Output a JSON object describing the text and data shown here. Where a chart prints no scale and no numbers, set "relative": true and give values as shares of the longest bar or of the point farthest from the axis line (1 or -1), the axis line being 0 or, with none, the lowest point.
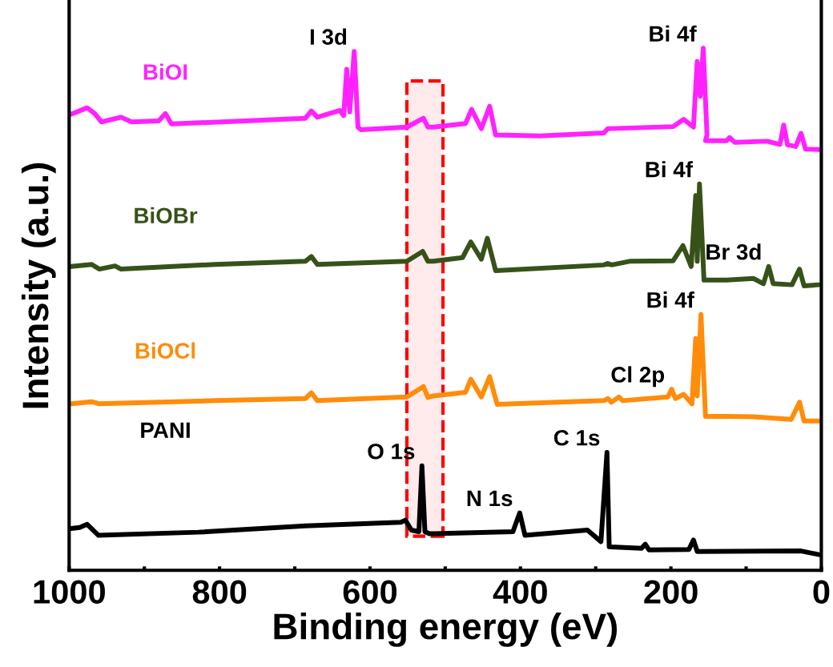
{
  "chart_data": {
    "type": "line",
    "relative": true,
    "xlabel": "Binding energy (eV)",
    "ylabel": "Intensity (a.u.)",
    "xlim": [
      1000,
      0
    ],
    "xticks": [
      1000,
      {
        "value": 900,
        "label": null
      },
      800,
      {
        "value": 700,
        "label": null
      },
      600,
      {
        "value": 500,
        "label": null
      },
      400,
      {
        "value": 300,
        "label": null
      },
      200,
      {
        "value": 100,
        "label": null
      },
      0
    ],
    "tick_labels": "x",
    "grid": false,
    "marker": "none",
    "line_style": "solid",
    "series": [
      {
        "name": "BiOI",
        "color": "#ff22ff",
        "x": [
          997,
          976,
          966,
          957,
          931,
          917,
          881,
          872,
          864,
          686,
          678,
          670,
          640,
          635,
          631,
          627,
          621,
          616,
          612,
          551,
          529,
          523,
          516,
          473,
          465,
          452,
          441,
          433,
          374,
          289,
          284,
          197,
          183,
          170,
          165,
          161,
          157,
          152,
          154,
          126,
          122,
          115,
          72,
          55,
          50,
          45,
          34,
          27,
          21,
          3
        ],
        "values": [
          0.874,
          0.886,
          0.875,
          0.859,
          0.868,
          0.859,
          0.861,
          0.875,
          0.855,
          0.866,
          0.88,
          0.868,
          0.881,
          0.871,
          0.96,
          0.878,
          0.994,
          0.849,
          0.844,
          0.849,
          0.866,
          0.849,
          0.849,
          0.856,
          0.883,
          0.846,
          0.889,
          0.834,
          0.832,
          0.838,
          0.846,
          0.85,
          0.864,
          0.849,
          0.975,
          0.908,
          1.0,
          0.834,
          0.823,
          0.823,
          0.829,
          0.82,
          0.822,
          0.816,
          0.853,
          0.815,
          0.812,
          0.837,
          0.807,
          0.806
        ]
      },
      {
        "name": "BiOBr",
        "color": "#375218",
        "x": [
          997,
          970,
          960,
          939,
          931,
          806,
          686,
          678,
          670,
          551,
          530,
          523,
          516,
          477,
          466,
          452,
          444,
          433,
          289,
          284,
          279,
          255,
          197,
          184,
          173,
          167,
          165,
          162,
          156,
          126,
          90,
          77,
          70,
          64,
          39,
          29,
          23,
          3
        ],
        "values": [
          0.582,
          0.586,
          0.577,
          0.583,
          0.577,
          0.586,
          0.592,
          0.601,
          0.586,
          0.592,
          0.611,
          0.592,
          0.592,
          0.599,
          0.629,
          0.596,
          0.636,
          0.574,
          0.585,
          0.588,
          0.585,
          0.592,
          0.593,
          0.622,
          0.582,
          0.718,
          0.592,
          0.74,
          0.556,
          0.556,
          0.559,
          0.549,
          0.582,
          0.549,
          0.547,
          0.577,
          0.545,
          0.547
        ]
      },
      {
        "name": "BiOCl",
        "color": "#ff8c0a",
        "x": [
          997,
          970,
          960,
          806,
          686,
          678,
          670,
          551,
          529,
          523,
          516,
          473,
          466,
          452,
          441,
          431,
          289,
          284,
          279,
          269,
          264,
          204,
          199,
          194,
          183,
          172,
          167,
          165,
          160,
          154,
          126,
          90,
          40,
          29,
          23,
          3
        ],
        "values": [
          0.319,
          0.323,
          0.319,
          0.325,
          0.329,
          0.34,
          0.325,
          0.332,
          0.352,
          0.331,
          0.334,
          0.341,
          0.366,
          0.332,
          0.371,
          0.318,
          0.325,
          0.329,
          0.322,
          0.332,
          0.325,
          0.332,
          0.347,
          0.329,
          0.337,
          0.319,
          0.444,
          0.334,
          0.49,
          0.295,
          0.295,
          0.294,
          0.289,
          0.322,
          0.286,
          0.286
        ]
      },
      {
        "name": "PANI",
        "color": "#000000",
        "x": [
          997,
          986,
          976,
          961,
          828,
          686,
          559,
          553,
          545,
          535,
          531,
          527,
          521,
          516,
          410,
          401,
          394,
          311,
          293,
          285,
          282,
          239,
          234,
          229,
          176,
          170,
          165,
          27,
          3
        ],
        "values": [
          0.08,
          0.082,
          0.088,
          0.067,
          0.073,
          0.085,
          0.092,
          0.096,
          0.077,
          0.074,
          0.2,
          0.074,
          0.07,
          0.07,
          0.074,
          0.11,
          0.067,
          0.077,
          0.055,
          0.226,
          0.045,
          0.042,
          0.05,
          0.039,
          0.04,
          0.058,
          0.036,
          0.037,
          0.03
        ]
      }
    ],
    "annotations": [
      {
        "text": "I 3d",
        "x": 621,
        "y": 0.994
      },
      {
        "text": "Bi 4f",
        "x": 157,
        "y": 1.0
      },
      {
        "text": "Bi 4f",
        "x": 162,
        "y": 0.74
      },
      {
        "text": "Br 3d",
        "x": 70,
        "y": 0.582
      },
      {
        "text": "Bi 4f",
        "x": 160,
        "y": 0.49
      },
      {
        "text": "Cl 2p",
        "x": 199,
        "y": 0.347
      },
      {
        "text": "O 1s",
        "x": 531,
        "y": 0.2
      },
      {
        "text": "N 1s",
        "x": 401,
        "y": 0.11
      },
      {
        "text": "C 1s",
        "x": 285,
        "y": 0.226
      }
    ],
    "bands": [
      {
        "axis": "x",
        "from": 551,
        "to": 503,
        "color": "#ff0000"
      }
    ]
  }
}
